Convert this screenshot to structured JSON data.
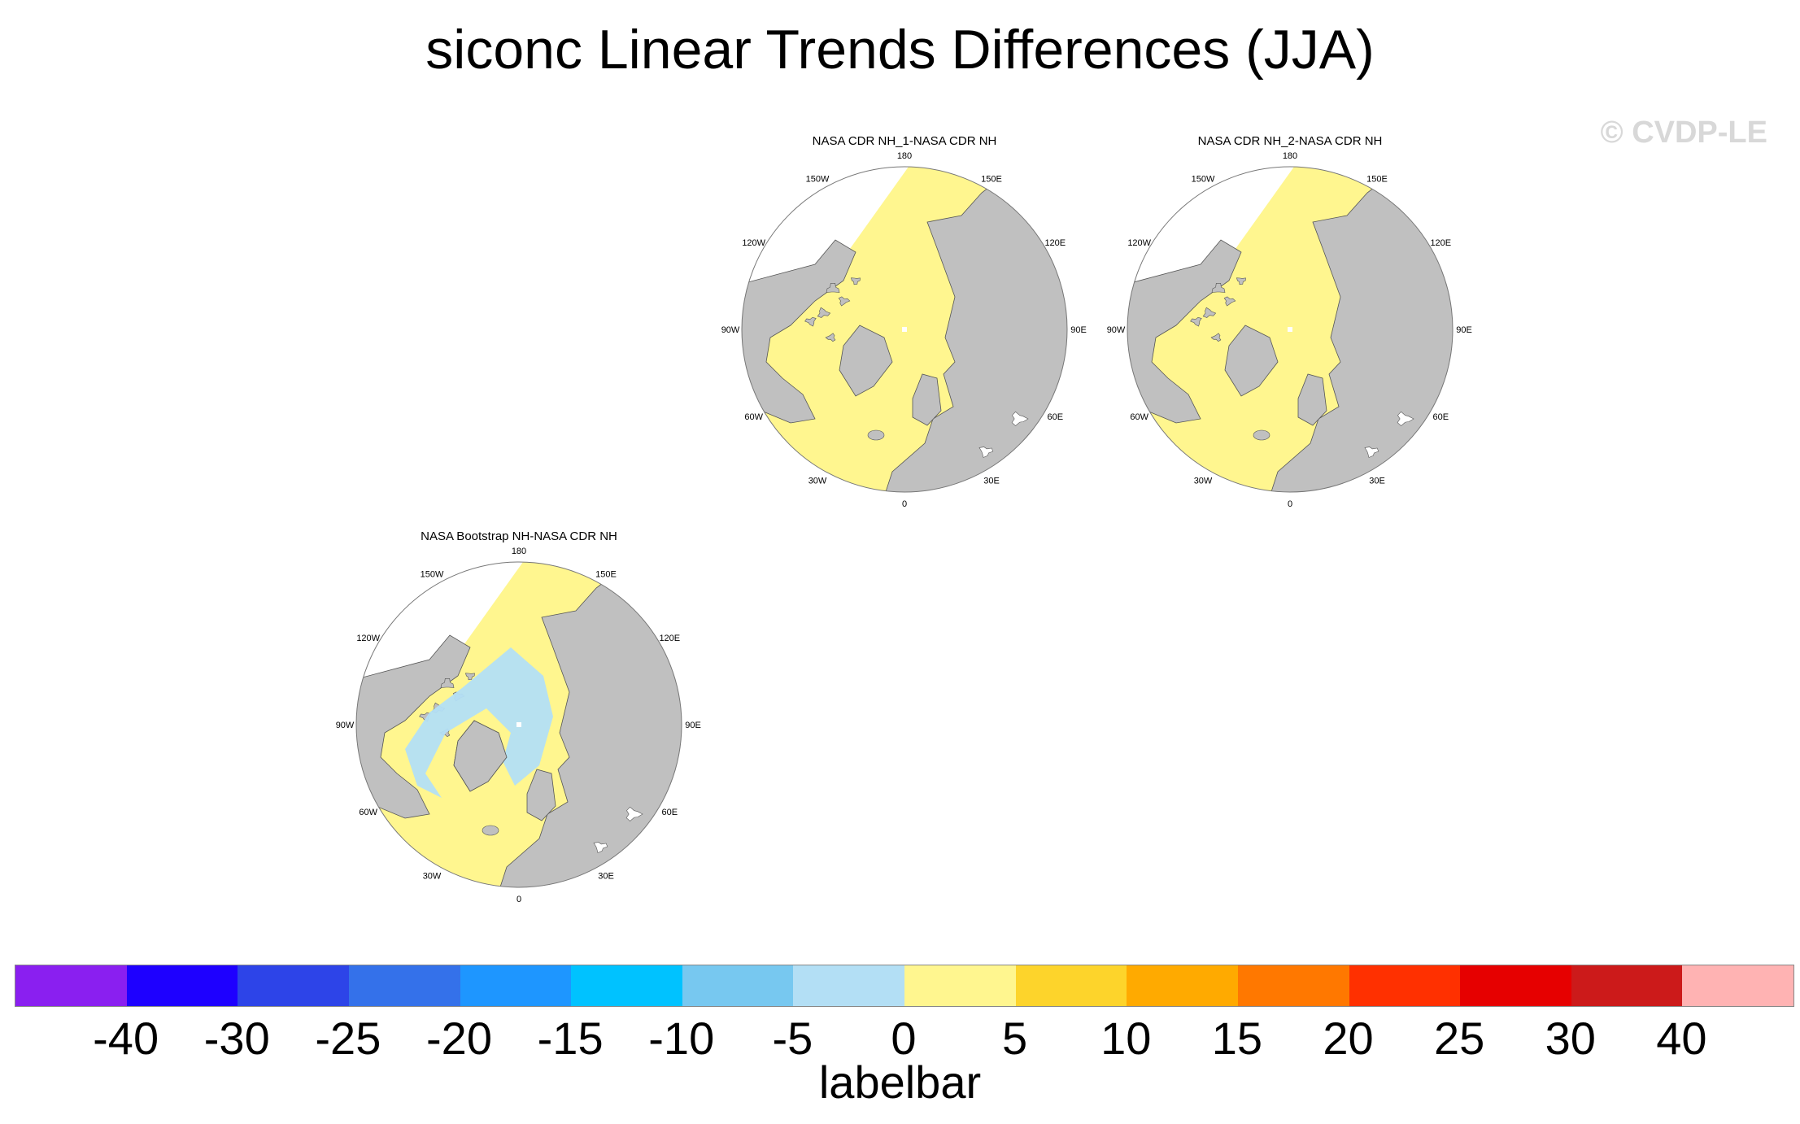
{
  "title": "siconc Linear Trends Differences (JJA)",
  "watermark": "© CVDP-LE",
  "colors": {
    "land": "#c0c0c0",
    "ice_zero": "#fff68f",
    "ice_neg": "#b3dff5",
    "ocean_missing": "#ffffff",
    "border": "#555555"
  },
  "panels": [
    {
      "title": "NASA CDR NH_1-NASA CDR NH",
      "negative_patches": false
    },
    {
      "title": "NASA CDR NH_2-NASA CDR NH",
      "negative_patches": false
    },
    {
      "title": "NASA Bootstrap NH-NASA CDR NH",
      "negative_patches": true
    }
  ],
  "lon_labels": [
    "180",
    "150E",
    "120E",
    "90E",
    "60E",
    "30E",
    "0",
    "30W",
    "60W",
    "90W",
    "120W",
    "150W"
  ],
  "chart_data": {
    "type": "heatmap",
    "projection": "north polar stereographic",
    "title": "siconc Linear Trends Differences (JJA)",
    "panels": [
      "NASA CDR NH_1-NASA CDR NH",
      "NASA CDR NH_2-NASA CDR NH",
      "NASA Bootstrap NH-NASA CDR NH"
    ],
    "colorbar": {
      "caption": "labelbar",
      "levels": [
        -40,
        -30,
        -25,
        -20,
        -15,
        -10,
        -5,
        0,
        5,
        10,
        15,
        20,
        25,
        30,
        40
      ],
      "level_labels": [
        "-40",
        "-30",
        "-25",
        "-20",
        "-15",
        "-10",
        "-5",
        "0",
        "5",
        "10",
        "15",
        "20",
        "25",
        "30",
        "40"
      ],
      "colors": [
        "#8a1ff0",
        "#1e00ff",
        "#2d44e8",
        "#3471ea",
        "#1e96ff",
        "#00c2ff",
        "#77c8f0",
        "#b3dff5",
        "#fff68f",
        "#fdd42b",
        "#ffaa00",
        "#ff7800",
        "#ff3000",
        "#e60000",
        "#cc1a1a",
        "#ffb3b3"
      ]
    }
  }
}
